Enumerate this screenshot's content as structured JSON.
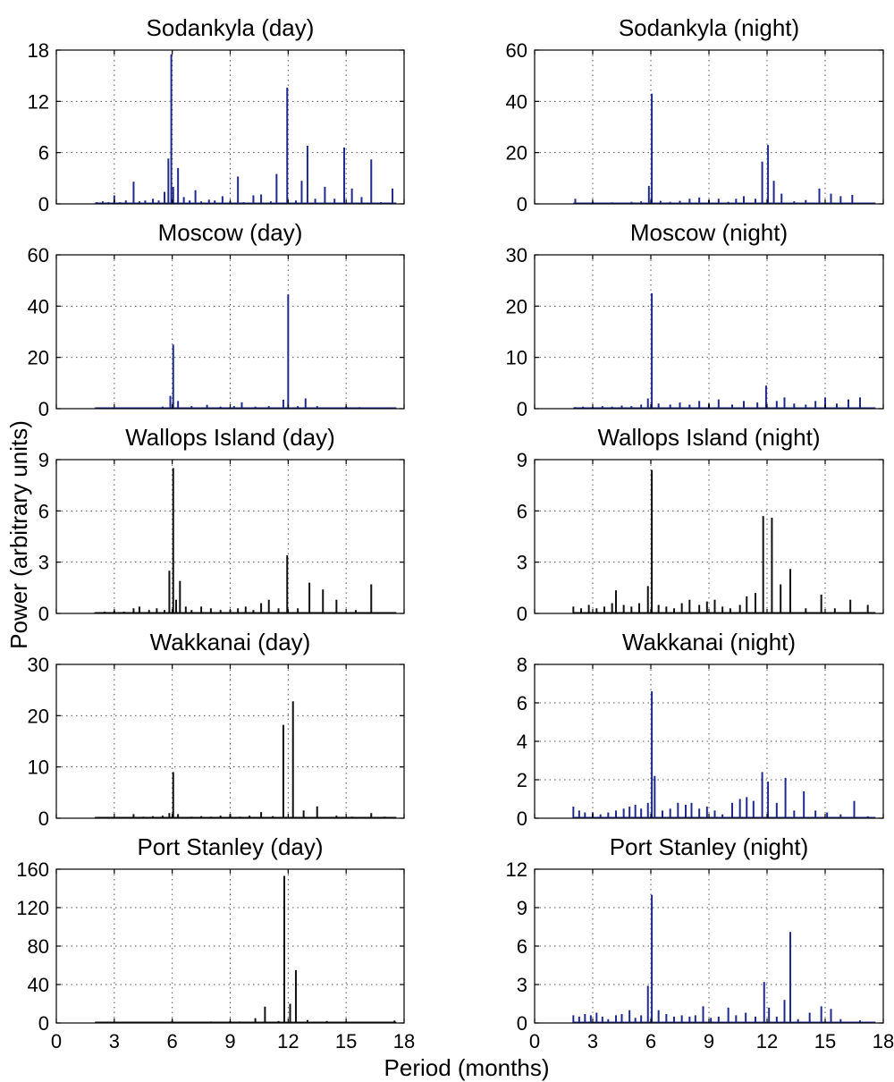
{
  "figure": {
    "ylabel": "Power (arbitrary units)",
    "xlabel": "Period (months)"
  },
  "chart_data": [
    {
      "type": "bar",
      "title": "Sodankyla (day)",
      "color": "#1f2a8c",
      "xlim": [
        0,
        18
      ],
      "ylim": [
        0,
        18
      ],
      "xticks": [
        "0",
        "3",
        "6",
        "9",
        "12",
        "15",
        "18"
      ],
      "yticks": [
        "0",
        "6",
        "12",
        "18"
      ],
      "grid": true,
      "x": [
        2.1,
        2.4,
        2.7,
        3.0,
        3.3,
        3.6,
        4.0,
        4.3,
        4.6,
        5.0,
        5.3,
        5.6,
        5.8,
        5.95,
        6.05,
        6.3,
        6.6,
        6.9,
        7.2,
        7.5,
        7.9,
        8.2,
        8.6,
        9.0,
        9.4,
        9.7,
        10.2,
        10.6,
        11.1,
        11.4,
        11.95,
        12.4,
        12.7,
        13.0,
        13.4,
        13.9,
        14.4,
        14.9,
        15.3,
        15.8,
        16.3,
        16.8,
        17.4
      ],
      "y": [
        0.2,
        0.3,
        0.2,
        1.0,
        0.2,
        0.4,
        2.6,
        0.3,
        0.4,
        0.6,
        0.4,
        1.4,
        5.3,
        17.5,
        2.0,
        4.2,
        0.8,
        0.4,
        1.6,
        0.3,
        0.5,
        0.4,
        0.9,
        0.3,
        3.2,
        0.2,
        1.0,
        1.1,
        0.3,
        3.5,
        13.6,
        0.4,
        2.7,
        6.8,
        0.6,
        2.0,
        0.6,
        6.6,
        1.8,
        0.8,
        5.2,
        0.2,
        1.8
      ]
    },
    {
      "type": "bar",
      "title": "Sodankyla (night)",
      "color": "#1f2a8c",
      "xlim": [
        0,
        18
      ],
      "ylim": [
        0,
        60
      ],
      "xticks": [
        "0",
        "3",
        "6",
        "9",
        "12",
        "15",
        "18"
      ],
      "yticks": [
        "0",
        "20",
        "40",
        "60"
      ],
      "grid": true,
      "x": [
        2.1,
        2.5,
        3.0,
        3.5,
        4.0,
        4.5,
        5.0,
        5.5,
        5.9,
        6.05,
        6.5,
        7.0,
        7.5,
        8.0,
        8.5,
        9.0,
        9.5,
        10.0,
        10.4,
        10.8,
        11.4,
        11.75,
        12.05,
        12.35,
        12.75,
        13.4,
        14.0,
        14.7,
        15.3,
        15.8,
        16.4
      ],
      "y": [
        2.0,
        0.5,
        0.8,
        0.4,
        0.6,
        0.5,
        0.8,
        1.0,
        7.0,
        43.0,
        1.2,
        0.8,
        1.2,
        2.0,
        2.5,
        1.5,
        2.0,
        0.8,
        2.0,
        3.0,
        2.0,
        16.5,
        23.0,
        9.0,
        4.0,
        1.0,
        1.5,
        6.0,
        4.0,
        3.0,
        3.5
      ]
    },
    {
      "type": "bar",
      "title": "Moscow (day)",
      "color": "#1f2a8c",
      "xlim": [
        0,
        18
      ],
      "ylim": [
        0,
        60
      ],
      "xticks": [
        "0",
        "3",
        "6",
        "9",
        "12",
        "15",
        "18"
      ],
      "yticks": [
        "0",
        "20",
        "40",
        "60"
      ],
      "grid": true,
      "x": [
        3.0,
        3.5,
        4.0,
        4.5,
        5.0,
        5.5,
        5.9,
        6.05,
        6.3,
        7.0,
        7.8,
        8.5,
        9.2,
        9.6,
        10.3,
        11.0,
        11.75,
        12.0,
        12.5,
        12.9,
        13.5,
        14.3,
        15.0,
        15.7,
        16.5,
        17.2
      ],
      "y": [
        0.3,
        0.5,
        0.3,
        0.4,
        0.5,
        0.8,
        5.0,
        25.0,
        3.0,
        1.0,
        1.5,
        0.8,
        1.0,
        2.5,
        0.8,
        1.0,
        3.5,
        44.5,
        1.0,
        4.0,
        1.0,
        0.5,
        0.8,
        0.6,
        0.5,
        0.3
      ]
    },
    {
      "type": "bar",
      "title": "Moscow (night)",
      "color": "#1f2a8c",
      "xlim": [
        0,
        18
      ],
      "ylim": [
        0,
        30
      ],
      "xticks": [
        "0",
        "3",
        "6",
        "9",
        "12",
        "15",
        "18"
      ],
      "yticks": [
        "0",
        "10",
        "20",
        "30"
      ],
      "grid": true,
      "x": [
        2.1,
        2.5,
        3.0,
        3.5,
        4.0,
        4.5,
        5.0,
        5.5,
        5.85,
        6.05,
        6.4,
        7.0,
        7.5,
        8.0,
        8.5,
        9.0,
        9.5,
        10.2,
        10.8,
        11.5,
        11.95,
        12.5,
        12.9,
        13.4,
        14.0,
        14.5,
        15.0,
        15.6,
        16.2,
        16.8
      ],
      "y": [
        0.3,
        0.4,
        0.3,
        0.5,
        0.4,
        0.6,
        0.5,
        0.8,
        2.0,
        22.5,
        1.0,
        0.8,
        1.2,
        0.8,
        1.5,
        1.0,
        1.8,
        0.8,
        1.5,
        1.2,
        4.5,
        1.5,
        2.2,
        1.0,
        0.8,
        1.5,
        2.2,
        1.0,
        1.8,
        2.2
      ]
    },
    {
      "type": "bar",
      "title": "Wallops Island (day)",
      "color": "#111111",
      "xlim": [
        0,
        18
      ],
      "ylim": [
        0,
        9
      ],
      "xticks": [
        "0",
        "3",
        "6",
        "9",
        "12",
        "15",
        "18"
      ],
      "yticks": [
        "0",
        "3",
        "6",
        "9"
      ],
      "grid": true,
      "x": [
        2.0,
        2.5,
        3.0,
        3.5,
        4.0,
        4.3,
        4.8,
        5.2,
        5.6,
        5.85,
        6.05,
        6.2,
        6.4,
        6.7,
        7.0,
        7.5,
        8.0,
        8.5,
        9.0,
        9.4,
        9.8,
        10.2,
        10.6,
        11.0,
        11.5,
        11.95,
        12.5,
        13.1,
        13.8,
        14.5,
        15.5,
        16.3
      ],
      "y": [
        0.05,
        0.1,
        0.15,
        0.1,
        0.3,
        0.4,
        0.2,
        0.3,
        0.2,
        2.5,
        8.5,
        0.8,
        1.9,
        0.4,
        0.2,
        0.4,
        0.3,
        0.2,
        0.2,
        0.3,
        0.4,
        0.2,
        0.6,
        0.8,
        0.3,
        3.4,
        0.3,
        1.8,
        1.4,
        0.8,
        0.2,
        1.7
      ]
    },
    {
      "type": "bar",
      "title": "Wallops Island (night)",
      "color": "#111111",
      "xlim": [
        0,
        18
      ],
      "ylim": [
        0,
        9
      ],
      "xticks": [
        "0",
        "3",
        "6",
        "9",
        "12",
        "15",
        "18"
      ],
      "yticks": [
        "0",
        "3",
        "6",
        "9"
      ],
      "grid": true,
      "x": [
        2.0,
        2.4,
        2.8,
        3.2,
        3.6,
        4.0,
        4.2,
        4.6,
        5.0,
        5.4,
        5.85,
        6.05,
        6.4,
        6.8,
        7.2,
        7.6,
        8.0,
        8.5,
        8.9,
        9.3,
        9.7,
        10.1,
        10.6,
        10.95,
        11.4,
        11.8,
        12.25,
        12.7,
        13.2,
        14.0,
        14.8,
        15.5,
        16.3,
        17.2
      ],
      "y": [
        0.4,
        0.3,
        0.5,
        0.3,
        0.4,
        0.6,
        1.35,
        0.5,
        0.4,
        0.6,
        1.6,
        8.4,
        0.5,
        0.4,
        0.3,
        0.6,
        0.8,
        0.5,
        0.7,
        0.8,
        0.4,
        0.3,
        0.5,
        1.0,
        1.2,
        5.7,
        5.6,
        1.7,
        2.6,
        0.3,
        1.1,
        0.3,
        0.8,
        0.5
      ]
    },
    {
      "type": "bar",
      "title": "Wakkanai (day)",
      "color": "#111111",
      "xlim": [
        0,
        18
      ],
      "ylim": [
        0,
        30
      ],
      "xticks": [
        "0",
        "3",
        "6",
        "9",
        "12",
        "15",
        "18"
      ],
      "yticks": [
        "0",
        "10",
        "20",
        "30"
      ],
      "grid": true,
      "x": [
        2.0,
        2.5,
        3.0,
        3.5,
        4.0,
        4.5,
        5.0,
        5.5,
        5.85,
        6.05,
        6.3,
        7.0,
        7.5,
        8.0,
        8.5,
        9.0,
        9.5,
        10.0,
        10.6,
        11.2,
        11.75,
        12.25,
        12.8,
        13.5,
        14.5,
        15.3,
        16.3,
        17.0
      ],
      "y": [
        0.1,
        0.2,
        0.1,
        0.2,
        0.8,
        0.3,
        0.4,
        0.5,
        1.0,
        9.0,
        0.8,
        0.3,
        0.4,
        0.3,
        0.5,
        0.8,
        0.3,
        0.5,
        1.2,
        0.4,
        18.2,
        22.8,
        1.5,
        2.3,
        0.5,
        0.3,
        1.0,
        0.3
      ]
    },
    {
      "type": "bar",
      "title": "Wakkanai (night)",
      "color": "#1f2a8c",
      "xlim": [
        0,
        18
      ],
      "ylim": [
        0,
        8
      ],
      "xticks": [
        "0",
        "3",
        "6",
        "9",
        "12",
        "15",
        "18"
      ],
      "yticks": [
        "0",
        "2",
        "4",
        "6",
        "8"
      ],
      "grid": true,
      "x": [
        2.0,
        2.3,
        2.6,
        3.0,
        3.4,
        3.8,
        4.2,
        4.6,
        4.9,
        5.2,
        5.5,
        5.85,
        6.05,
        6.2,
        6.6,
        7.0,
        7.4,
        7.8,
        8.1,
        8.5,
        8.9,
        9.3,
        9.7,
        10.2,
        10.6,
        10.95,
        11.3,
        11.75,
        12.05,
        12.5,
        12.95,
        13.4,
        13.9,
        14.5,
        15.1,
        15.8,
        16.5,
        17.2
      ],
      "y": [
        0.6,
        0.4,
        0.3,
        0.3,
        0.2,
        0.3,
        0.4,
        0.5,
        0.6,
        0.7,
        0.5,
        0.8,
        6.6,
        2.2,
        0.4,
        0.5,
        0.8,
        0.7,
        0.8,
        0.5,
        0.6,
        0.4,
        0.2,
        0.8,
        1.0,
        1.1,
        0.9,
        2.4,
        1.9,
        0.8,
        2.1,
        0.4,
        1.4,
        0.4,
        0.3,
        0.2,
        0.9,
        0.1
      ]
    },
    {
      "type": "bar",
      "title": "Port Stanley (day)",
      "color": "#111111",
      "xlim": [
        0,
        18
      ],
      "ylim": [
        0,
        160
      ],
      "xticks": [
        "0",
        "3",
        "6",
        "9",
        "12",
        "15",
        "18"
      ],
      "yticks": [
        "0",
        "40",
        "80",
        "120",
        "160"
      ],
      "grid": true,
      "x": [
        2.0,
        3.0,
        4.0,
        5.0,
        6.0,
        7.0,
        8.0,
        9.0,
        9.5,
        10.3,
        10.8,
        11.5,
        11.8,
        12.1,
        12.4,
        13.0,
        14.0,
        15.0,
        16.0,
        17.0,
        17.5
      ],
      "y": [
        0.5,
        0.8,
        0.6,
        0.8,
        2.5,
        1.0,
        1.5,
        2.0,
        1.5,
        5.0,
        17.0,
        2.0,
        153.0,
        20.0,
        55.0,
        3.0,
        2.0,
        1.5,
        1.0,
        0.8,
        2.5
      ]
    },
    {
      "type": "bar",
      "title": "Port Stanley (night)",
      "color": "#1f2a8c",
      "xlim": [
        0,
        18
      ],
      "ylim": [
        0,
        12
      ],
      "xticks": [
        "0",
        "3",
        "6",
        "9",
        "12",
        "15",
        "18"
      ],
      "yticks": [
        "0",
        "3",
        "6",
        "9",
        "12"
      ],
      "grid": true,
      "x": [
        2.0,
        2.3,
        2.6,
        2.9,
        3.2,
        3.5,
        3.8,
        4.2,
        4.5,
        4.9,
        5.2,
        5.5,
        5.85,
        6.05,
        6.4,
        6.8,
        7.2,
        7.6,
        8.0,
        8.3,
        8.7,
        9.1,
        9.5,
        10.0,
        10.4,
        10.9,
        11.4,
        11.85,
        12.1,
        12.5,
        12.9,
        13.2,
        13.6,
        14.2,
        14.8,
        15.3,
        15.8,
        16.8
      ],
      "y": [
        0.6,
        0.5,
        0.7,
        0.6,
        0.8,
        0.5,
        0.3,
        0.6,
        0.7,
        1.0,
        0.4,
        0.6,
        2.9,
        10.0,
        1.0,
        0.7,
        0.5,
        0.6,
        0.5,
        0.6,
        1.3,
        0.4,
        0.5,
        1.2,
        0.6,
        0.8,
        0.5,
        3.2,
        1.2,
        0.5,
        1.8,
        7.1,
        0.3,
        0.8,
        1.3,
        1.1,
        0.3,
        0.2
      ]
    }
  ]
}
